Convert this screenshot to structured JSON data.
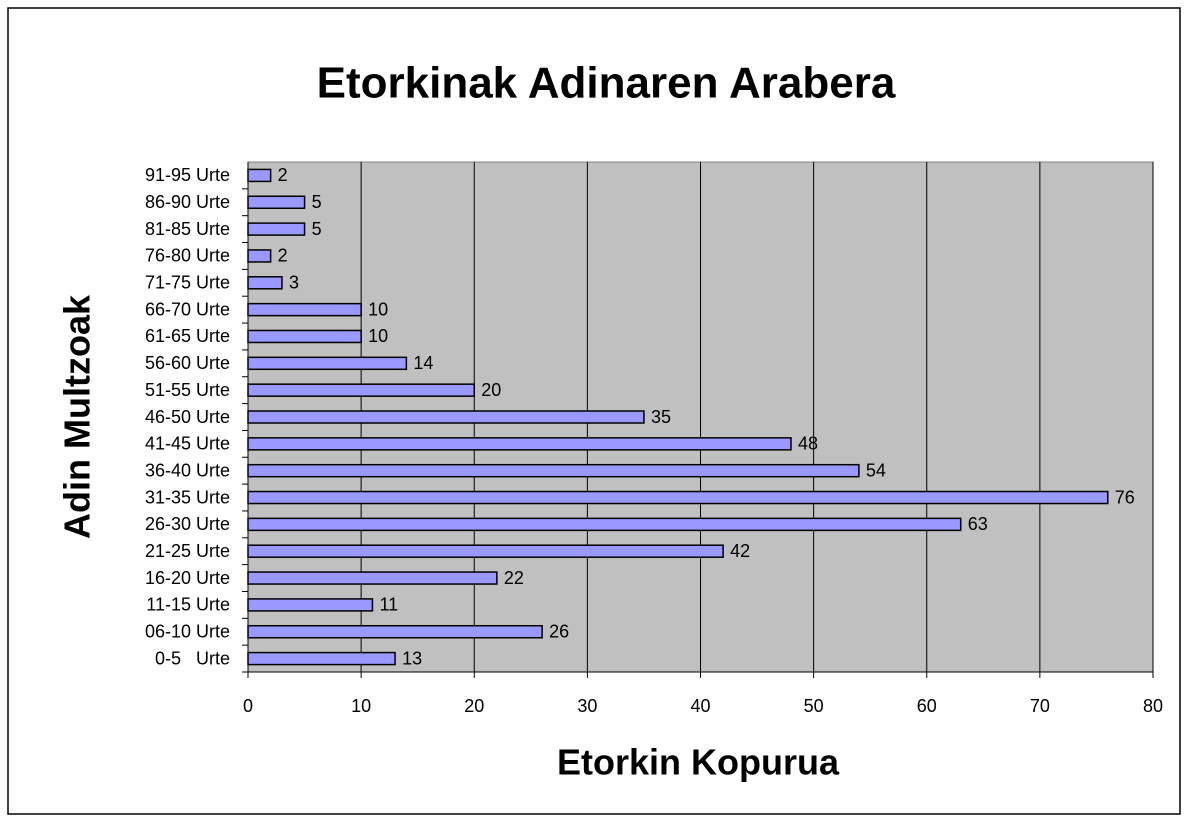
{
  "chart_data": {
    "type": "bar",
    "orientation": "horizontal",
    "title": "Etorkinak Adinaren Arabera",
    "x_label": "Etorkin Kopurua",
    "y_label": "Adin Multzoak",
    "categories": [
      "0-5   Urte",
      "06-10 Urte",
      "11-15 Urte",
      "16-20 Urte",
      "21-25 Urte",
      "26-30 Urte",
      "31-35 Urte",
      "36-40 Urte",
      "41-45 Urte",
      "46-50 Urte",
      "51-55 Urte",
      "56-60 Urte",
      "61-65 Urte",
      "66-70 Urte",
      "71-75 Urte",
      "76-80 Urte",
      "81-85 Urte",
      "86-90 Urte",
      "91-95 Urte"
    ],
    "values": [
      13,
      26,
      11,
      22,
      42,
      63,
      76,
      54,
      48,
      35,
      20,
      14,
      10,
      10,
      3,
      2,
      5,
      5,
      2
    ],
    "color": "#9999ff",
    "xlim": [
      0,
      80
    ],
    "xticks": [
      0,
      10,
      20,
      30,
      40,
      50,
      60,
      70,
      80
    ],
    "grid": true,
    "plot_background": "#c0c0c0"
  }
}
